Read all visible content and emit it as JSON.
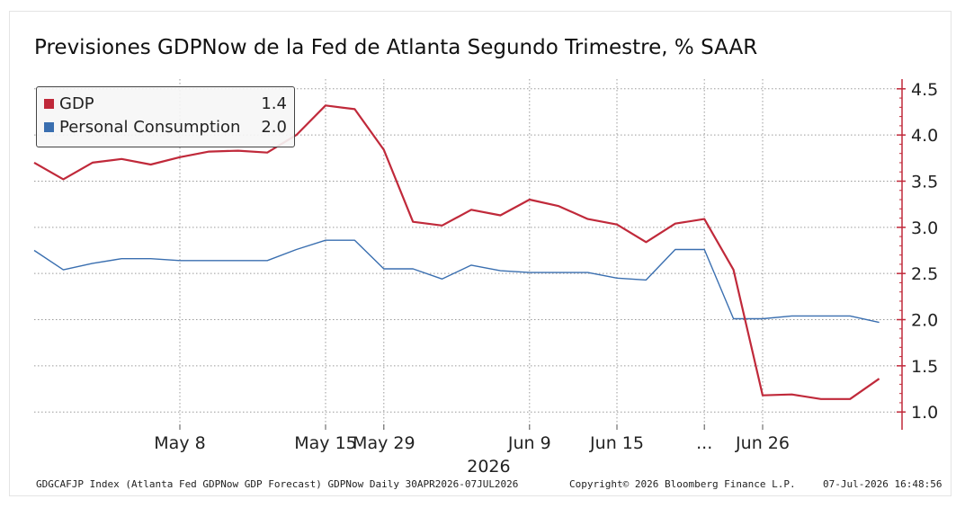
{
  "title": "Previsiones GDPNow de la Fed de Atlanta Segundo Trimestre, % SAAR",
  "legend": [
    {
      "name": "GDP",
      "value": "1.4",
      "color": "#c0293a"
    },
    {
      "name": "Personal Consumption",
      "value": "2.0",
      "color": "#3a6fb0"
    }
  ],
  "footer": {
    "left": "GDGCAFJP Index (Atlanta Fed GDPNow GDP Forecast) GDPNow Daily 30APR2026-07JUL2026",
    "middle": "Copyright© 2026 Bloomberg Finance L.P.",
    "right": "07-Jul-2026 16:48:56"
  },
  "chart_data": {
    "type": "line",
    "title": "Previsiones GDPNow de la Fed de Atlanta Segundo Trimestre, % SAAR",
    "xlabel": "2026",
    "ylabel": "",
    "ylim": [
      0.85,
      4.65
    ],
    "y_ticks": [
      1.0,
      1.5,
      2.0,
      2.5,
      3.0,
      3.5,
      4.0,
      4.5
    ],
    "y_axis_side": "right",
    "grid": true,
    "legend_position": "top-left",
    "x_tick_labels": [
      {
        "label": "May 8",
        "index": 5
      },
      {
        "label": "May 15",
        "index": 10
      },
      {
        "label": "May 29",
        "index": 12
      },
      {
        "label": "Jun 9",
        "index": 17
      },
      {
        "label": "Jun 15",
        "index": 20
      },
      {
        "label": "...",
        "index": 23
      },
      {
        "label": "Jun 26",
        "index": 25
      }
    ],
    "series": [
      {
        "name": "GDP",
        "color": "#c0293a",
        "values": [
          3.7,
          3.52,
          3.7,
          3.74,
          3.68,
          3.76,
          3.82,
          3.83,
          3.81,
          4.0,
          4.32,
          4.28,
          3.84,
          3.06,
          3.02,
          3.19,
          3.13,
          3.3,
          3.23,
          3.09,
          3.03,
          2.84,
          3.04,
          3.09,
          2.54,
          1.18,
          1.19,
          1.14,
          1.14,
          1.36
        ]
      },
      {
        "name": "Personal Consumption",
        "color": "#3a6fb0",
        "values": [
          2.75,
          2.54,
          2.61,
          2.66,
          2.66,
          2.64,
          2.64,
          2.64,
          2.64,
          2.76,
          2.86,
          2.86,
          2.55,
          2.55,
          2.44,
          2.59,
          2.53,
          2.51,
          2.51,
          2.51,
          2.45,
          2.43,
          2.76,
          2.76,
          2.01,
          2.01,
          2.04,
          2.04,
          2.04,
          1.97
        ]
      }
    ]
  }
}
